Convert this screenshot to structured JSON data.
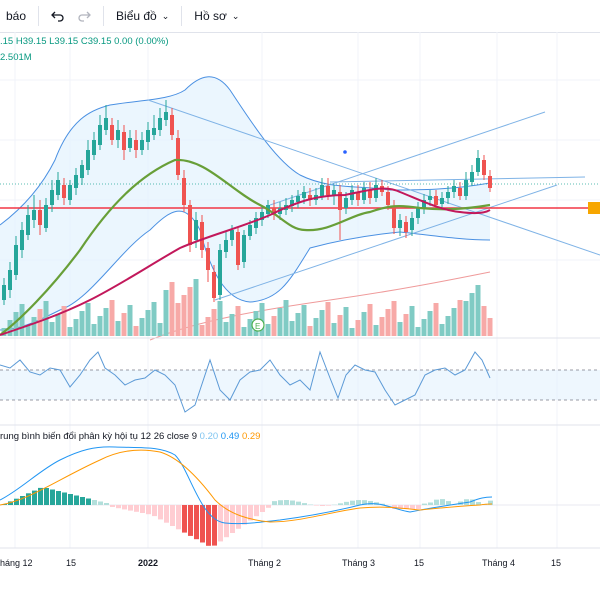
{
  "toolbar": {
    "alert_label": "báo",
    "undo_icon": "undo-icon",
    "redo_icon": "redo-icon",
    "chart_menu_label": "Biểu đồ",
    "profile_menu_label": "Hồ sơ"
  },
  "ohlc": {
    "open": ".15",
    "high": "H39.15",
    "low": "L39.15",
    "close": "C39.15",
    "change": "0.00 (0.00%)"
  },
  "volume_value": "2.501M",
  "macd": {
    "title": "rung bình biến đổi phân kỳ hội tụ 12 26 close 9",
    "v1": "0.20",
    "v2": "0.49",
    "v3": "0.29"
  },
  "x_axis": {
    "labels": [
      "háng 12",
      "15",
      "2022",
      "Tháng 2",
      "Tháng 3",
      "15",
      "Tháng 4",
      "15"
    ]
  },
  "colors": {
    "up": "#26a69a",
    "down": "#ef5350",
    "bb_line": "#2962ff",
    "ma_short": "#880e4f",
    "ma_long": "#689f38",
    "resistance": "#f23645",
    "macd_line": "#2196f3",
    "signal_line": "#ff9800"
  }
}
